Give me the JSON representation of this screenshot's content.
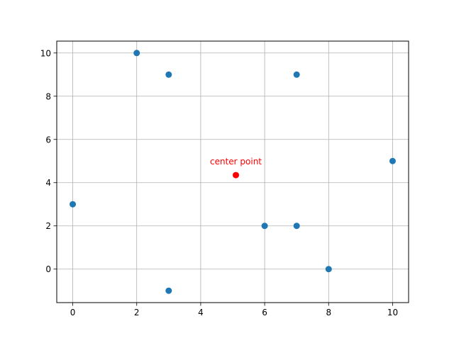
{
  "chart_data": {
    "type": "scatter",
    "title": "",
    "xlabel": "",
    "ylabel": "",
    "xlim": [
      -0.5,
      10.5
    ],
    "ylim": [
      -1.55,
      10.55
    ],
    "x_ticks": [
      0,
      2,
      4,
      6,
      8,
      10
    ],
    "y_ticks": [
      0,
      2,
      4,
      6,
      8,
      10
    ],
    "x_tick_labels": [
      "0",
      "2",
      "4",
      "6",
      "8",
      "10"
    ],
    "y_tick_labels": [
      "0",
      "2",
      "4",
      "6",
      "8",
      "10"
    ],
    "grid": true,
    "series": [
      {
        "color": "#1f77b4",
        "points": [
          {
            "x": 0,
            "y": 3
          },
          {
            "x": 2,
            "y": 10
          },
          {
            "x": 3,
            "y": 9
          },
          {
            "x": 3,
            "y": -1
          },
          {
            "x": 6,
            "y": 2
          },
          {
            "x": 7,
            "y": 9
          },
          {
            "x": 7,
            "y": 2
          },
          {
            "x": 8,
            "y": 0
          },
          {
            "x": 10,
            "y": 5
          }
        ]
      },
      {
        "color": "#ff0000",
        "points": [
          {
            "x": 5.1,
            "y": 4.35
          }
        ]
      }
    ],
    "annotations": [
      {
        "text": "center point",
        "x": 5.1,
        "y": 4.35,
        "color": "#ff0000"
      }
    ]
  }
}
